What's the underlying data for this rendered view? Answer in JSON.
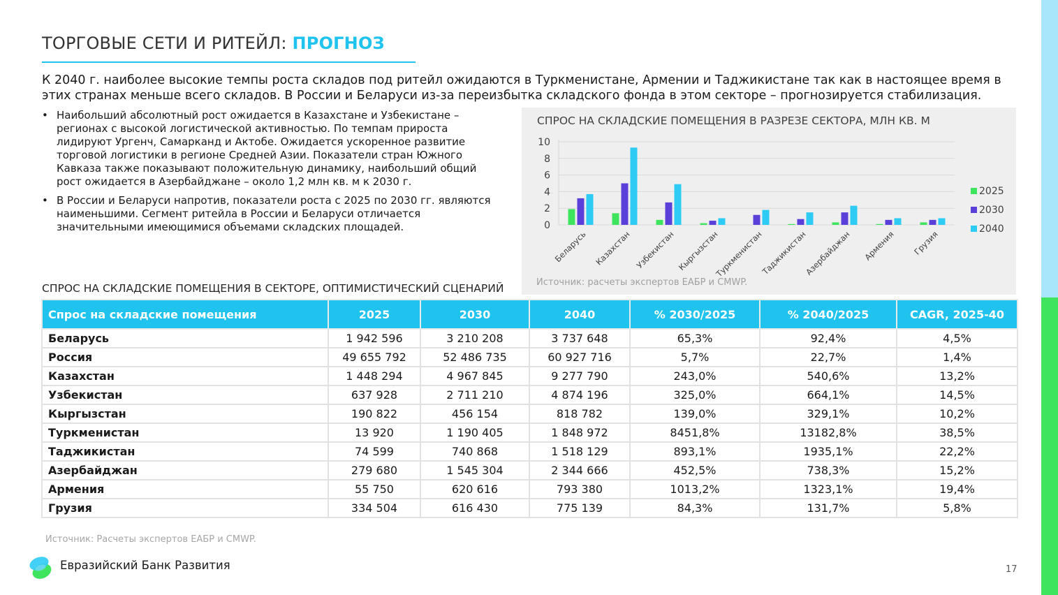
{
  "title": {
    "main": "ТОРГОВЫЕ СЕТИ И РИТЕЙЛ: ",
    "highlight": "ПРОГНОЗ"
  },
  "intro": "К 2040 г. наиболее высокие темпы роста складов под ритейл ожидаются в Туркменистане, Армении и Таджикистане так как в настоящее время в этих странах меньше всего складов. В России и Беларуси из-за переизбытка складского фонда в этом секторе – прогнозируется стабилизация.",
  "bullets": [
    "Наибольший абсолютный рост ожидается в Казахстане и Узбекистане – регионах с высокой логистической активностью. По темпам прироста лидируют Ургенч, Самарканд и Актобе. Ожидается ускоренное развитие торговой логистики в регионе Средней Азии. Показатели стран Южного Кавказа также показывают положительную динамику, наибольший общий рост ожидается в Азербайджане – около 1,2 млн кв. м к 2030 г.",
    "В России и Беларуси напротив, показатели роста с 2025 по 2030 гг. являются наименьшими. Сегмент ритейла в России и Беларуси отличается значительными имеющимися объемами складских площадей."
  ],
  "bullet_char": "•",
  "chart_data": {
    "type": "bar",
    "title": "СПРОС НА СКЛАДСКИЕ ПОМЕЩЕНИЯ В РАЗРЕЗЕ СЕКТОРА, МЛН КВ. М",
    "categories": [
      "Беларусь",
      "Казахстан",
      "Узбекистан",
      "Кыргызстан",
      "Туркменистан",
      "Таджикистан",
      "Азербайджан",
      "Армения",
      "Грузия"
    ],
    "series": [
      {
        "name": "2025",
        "color": "#3ee45e",
        "values": [
          1.9,
          1.4,
          0.6,
          0.2,
          0.0,
          0.1,
          0.3,
          0.1,
          0.3
        ]
      },
      {
        "name": "2030",
        "color": "#5b3fd9",
        "values": [
          3.2,
          5.0,
          2.7,
          0.5,
          1.2,
          0.7,
          1.5,
          0.6,
          0.6
        ]
      },
      {
        "name": "2040",
        "color": "#2ecbf5",
        "values": [
          3.7,
          9.3,
          4.9,
          0.8,
          1.8,
          1.5,
          2.3,
          0.8,
          0.8
        ]
      }
    ],
    "yticks": [
      "0",
      "2",
      "4",
      "6",
      "8",
      "10"
    ],
    "ylim": [
      0,
      10
    ],
    "xlabel": "",
    "ylabel": "",
    "grid": true,
    "legend": "right",
    "source": "Источник: расчеты экспертов ЕАБР и CMWP."
  },
  "table": {
    "title": "СПРОС НА СКЛАДСКИЕ ПОМЕЩЕНИЯ В СЕКТОРЕ, ОПТИМИСТИЧЕСКИЙ СЦЕНАРИЙ",
    "headers": [
      "Спрос на складские помещения",
      "2025",
      "2030",
      "2040",
      "% 2030/2025",
      "% 2040/2025",
      "CAGR, 2025-40"
    ],
    "rows": [
      [
        "Беларусь",
        "1 942 596",
        "3 210 208",
        "3 737 648",
        "65,3%",
        "92,4%",
        "4,5%"
      ],
      [
        "Россия",
        "49 655 792",
        "52 486 735",
        "60 927 716",
        "5,7%",
        "22,7%",
        "1,4%"
      ],
      [
        "Казахстан",
        "1 448 294",
        "4 967 845",
        "9 277 790",
        "243,0%",
        "540,6%",
        "13,2%"
      ],
      [
        "Узбекистан",
        "637 928",
        "2 711 210",
        "4 874 196",
        "325,0%",
        "664,1%",
        "14,5%"
      ],
      [
        "Кыргызстан",
        "190 822",
        "456 154",
        "818 782",
        "139,0%",
        "329,1%",
        "10,2%"
      ],
      [
        "Туркменистан",
        "13 920",
        "1 190 405",
        "1 848 972",
        "8451,8%",
        "13182,8%",
        "38,5%"
      ],
      [
        "Таджикистан",
        "74 599",
        "740 868",
        "1 518 129",
        "893,1%",
        "1935,1%",
        "22,2%"
      ],
      [
        "Азербайджан",
        "279 680",
        "1 545 304",
        "2 344 666",
        "452,5%",
        "738,3%",
        "15,2%"
      ],
      [
        "Армения",
        "55 750",
        "620 616",
        "793 380",
        "1013,2%",
        "1323,1%",
        "19,4%"
      ],
      [
        "Грузия",
        "334 504",
        "616 430",
        "775 139",
        "84,3%",
        "131,7%",
        "5,8%"
      ]
    ],
    "source": "Источник: Расчеты экспертов ЕАБР и CMWP."
  },
  "footer": {
    "logo_text": "Евразийский Банк Развития",
    "page": "17"
  }
}
